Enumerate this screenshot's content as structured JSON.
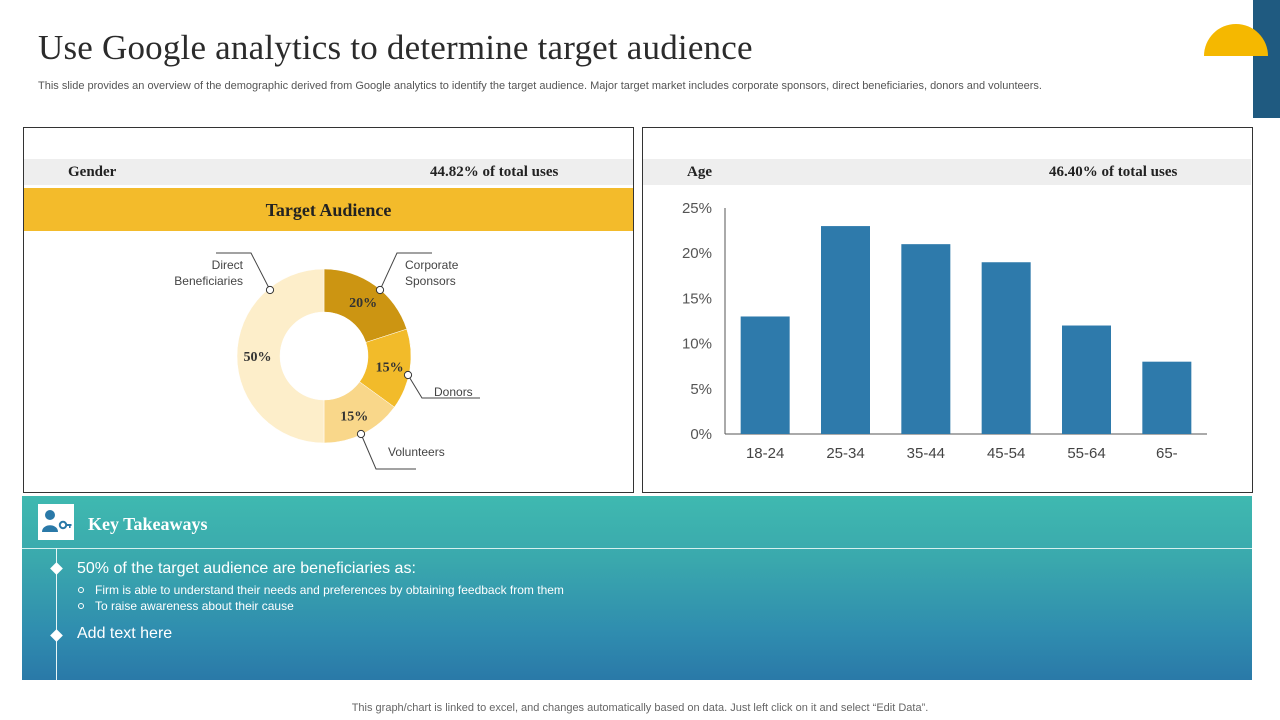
{
  "header": {
    "title": "Use Google analytics to determine target audience",
    "subtitle": "This slide provides an overview of the demographic derived from Google analytics to identify the target audience. Major target market includes corporate sponsors, direct beneficiaries, donors and volunteers."
  },
  "gender_panel": {
    "label": "Gender",
    "stat": "44.82% of total uses",
    "band_title": "Target Audience"
  },
  "age_panel": {
    "label": "Age",
    "stat": "46.40% of total uses"
  },
  "colors": {
    "accent_yellow": "#f3bb2b",
    "bar_blue": "#2e7aab",
    "deco_navy": "#1f5a80",
    "sun": "#f5b800"
  },
  "chart_data": [
    {
      "type": "pie",
      "title": "Target Audience",
      "categories": [
        "Corporate Sponsors",
        "Donors",
        "Volunteers",
        "Direct Beneficiaries"
      ],
      "values": [
        20,
        15,
        15,
        50
      ],
      "labels": [
        "20%",
        "15%",
        "15%",
        "50%"
      ],
      "colors": [
        "#cc9512",
        "#f2bb2a",
        "#f9d78a",
        "#fdeeca"
      ]
    },
    {
      "type": "bar",
      "title": "Age",
      "categories": [
        "18-24",
        "25-34",
        "35-44",
        "45-54",
        "55-64",
        "65-"
      ],
      "values": [
        13,
        23,
        21,
        19,
        12,
        8
      ],
      "ylim": [
        0,
        25
      ],
      "yticks": [
        "0%",
        "5%",
        "10%",
        "15%",
        "20%",
        "25%"
      ],
      "xlabel": "",
      "ylabel": ""
    }
  ],
  "key_takeaways": {
    "title": "Key Takeaways",
    "point1": "50% of the target audience are beneficiaries as:",
    "sub1": "Firm is able to understand their needs and preferences by obtaining feedback from them",
    "sub2": "To raise awareness about their cause",
    "point2": "Add text here"
  },
  "footer": "This graph/chart is linked to excel,  and changes automatically based on data. Just left click on it and select “Edit Data”."
}
